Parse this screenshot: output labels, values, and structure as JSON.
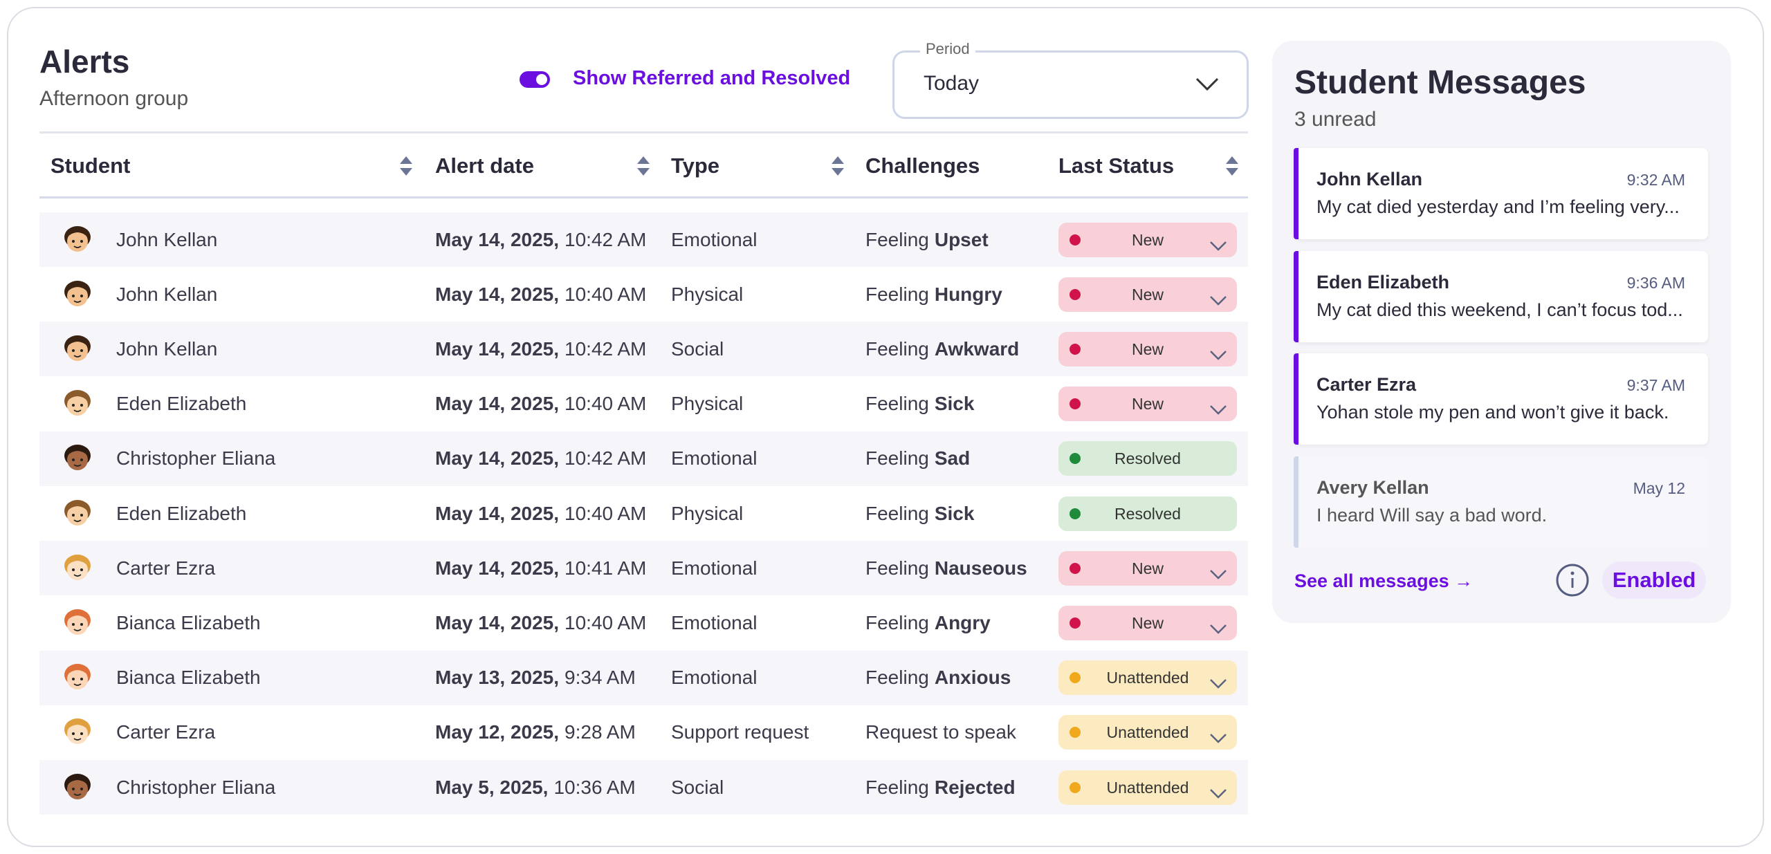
{
  "alerts": {
    "title": "Alerts",
    "subtitle": "Afternoon group",
    "toggle_label": "Show Referred and Resolved",
    "period": {
      "label": "Period",
      "value": "Today"
    }
  },
  "table": {
    "columns": [
      "Student",
      "Alert date",
      "Type",
      "Challenges",
      "Last Status"
    ],
    "rows": [
      {
        "student": "John Kellan",
        "date": "May 14, 2025,",
        "time": "10:42 AM",
        "type": "Emotional",
        "challenge": "Feeling",
        "challenge_bold": "Upset",
        "status": "New",
        "status_color": "#d0134a",
        "status_bg": "#f9d0d8",
        "dropdown": true,
        "skin": "#f3c08f",
        "hair": "#3b2314"
      },
      {
        "student": "John Kellan",
        "date": "May 14, 2025,",
        "time": "10:40 AM",
        "type": "Physical",
        "challenge": "Feeling",
        "challenge_bold": "Hungry",
        "status": "New",
        "status_color": "#d0134a",
        "status_bg": "#f9d0d8",
        "dropdown": true,
        "skin": "#f3c08f",
        "hair": "#3b2314"
      },
      {
        "student": "John Kellan",
        "date": "May 14, 2025,",
        "time": "10:42 AM",
        "type": "Social",
        "challenge": "Feeling",
        "challenge_bold": "Awkward",
        "status": "New",
        "status_color": "#d0134a",
        "status_bg": "#f9d0d8",
        "dropdown": true,
        "skin": "#f3c08f",
        "hair": "#3b2314"
      },
      {
        "student": "Eden Elizabeth",
        "date": "May 14, 2025,",
        "time": "10:40 AM",
        "type": "Physical",
        "challenge": "Feeling",
        "challenge_bold": "Sick",
        "status": "New",
        "status_color": "#d0134a",
        "status_bg": "#f9d0d8",
        "dropdown": true,
        "skin": "#f6cfa5",
        "hair": "#8a5a2b"
      },
      {
        "student": "Christopher Eliana",
        "date": "May 14, 2025,",
        "time": "10:42 AM",
        "type": "Emotional",
        "challenge": "Feeling",
        "challenge_bold": "Sad",
        "status": "Resolved",
        "status_color": "#1e8a3a",
        "status_bg": "#d9ecd9",
        "dropdown": false,
        "skin": "#a86a45",
        "hair": "#2b1a10"
      },
      {
        "student": "Eden Elizabeth",
        "date": "May 14, 2025,",
        "time": "10:40 AM",
        "type": "Physical",
        "challenge": "Feeling",
        "challenge_bold": "Sick",
        "status": "Resolved",
        "status_color": "#1e8a3a",
        "status_bg": "#d9ecd9",
        "dropdown": false,
        "skin": "#f6cfa5",
        "hair": "#8a5a2b"
      },
      {
        "student": "Carter Ezra",
        "date": "May 14, 2025,",
        "time": "10:41 AM",
        "type": "Emotional",
        "challenge": "Feeling",
        "challenge_bold": "Nauseous",
        "status": "New",
        "status_color": "#d0134a",
        "status_bg": "#f9d0d8",
        "dropdown": true,
        "skin": "#fbe0c4",
        "hair": "#e0a040"
      },
      {
        "student": "Bianca Elizabeth",
        "date": "May 14, 2025,",
        "time": "10:40 AM",
        "type": "Emotional",
        "challenge": "Feeling",
        "challenge_bold": "Angry",
        "status": "New",
        "status_color": "#d0134a",
        "status_bg": "#f9d0d8",
        "dropdown": true,
        "skin": "#fbd6b8",
        "hair": "#e0703a"
      },
      {
        "student": "Bianca Elizabeth",
        "date": "May 13, 2025,",
        "time": "9:34 AM",
        "type": "Emotional",
        "challenge": "Feeling",
        "challenge_bold": "Anxious",
        "status": "Unattended",
        "status_color": "#f0a81c",
        "status_bg": "#fcebc0",
        "dropdown": true,
        "skin": "#fbd6b8",
        "hair": "#e0703a"
      },
      {
        "student": "Carter Ezra",
        "date": "May 12, 2025,",
        "time": "9:28 AM",
        "type": "Support request",
        "challenge": "Request to speak",
        "status": "Unattended",
        "status_color": "#f0a81c",
        "status_bg": "#fcebc0",
        "dropdown": true,
        "skin": "#fbe0c4",
        "hair": "#e0a040"
      },
      {
        "student": "Christopher Eliana",
        "date": "May 5, 2025,",
        "time": "10:36 AM",
        "type": "Social",
        "challenge": "Feeling",
        "challenge_bold": "Rejected",
        "status": "Unattended",
        "status_color": "#f0a81c",
        "status_bg": "#fcebc0",
        "dropdown": true,
        "skin": "#a86a45",
        "hair": "#2b1a10"
      }
    ]
  },
  "messages": {
    "title": "Student Messages",
    "unread": "3 unread",
    "items": [
      {
        "name": "John Kellan",
        "time": "9:32 AM",
        "text": "My cat died yesterday and I’m feeling very...",
        "unread": true
      },
      {
        "name": "Eden Elizabeth",
        "time": "9:36 AM",
        "text": "My cat died this weekend, I can’t focus tod...",
        "unread": true
      },
      {
        "name": "Carter Ezra",
        "time": "9:37 AM",
        "text": "Yohan stole my pen and won’t give it back.",
        "unread": true
      },
      {
        "name": "Avery Kellan",
        "time": "May 12",
        "text": "I heard Will say a bad word.",
        "unread": false
      }
    ],
    "link": "See all messages →",
    "enabled": "Enabled"
  }
}
